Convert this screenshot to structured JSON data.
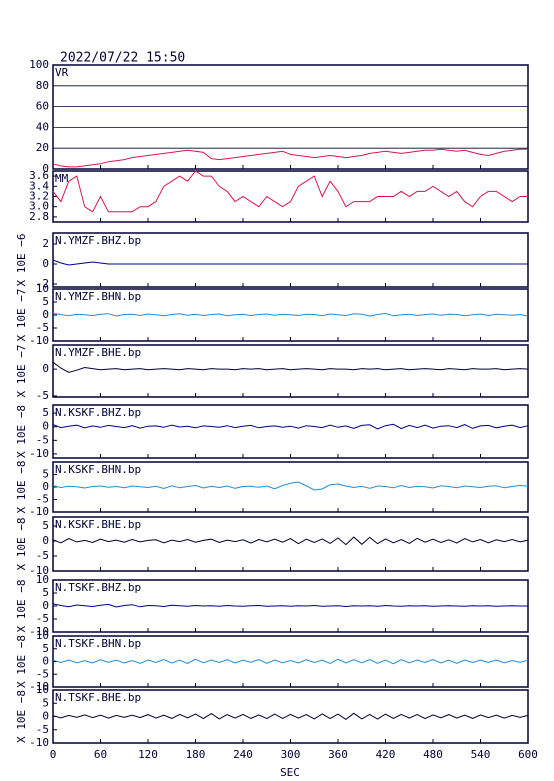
{
  "chart_data": {
    "type": "line",
    "date": "2022/07/22 15:50",
    "xlabel": "SEC",
    "x": [
      0,
      10,
      20,
      30,
      40,
      50,
      60,
      70,
      80,
      90,
      100,
      110,
      120,
      130,
      140,
      150,
      160,
      170,
      180,
      190,
      200,
      210,
      220,
      230,
      240,
      250,
      260,
      270,
      280,
      290,
      300,
      310,
      320,
      330,
      340,
      350,
      360,
      370,
      380,
      390,
      400,
      410,
      420,
      430,
      440,
      450,
      460,
      470,
      480,
      490,
      500,
      510,
      520,
      530,
      540,
      550,
      560,
      570,
      580,
      590,
      600
    ],
    "xlim": [
      0,
      600
    ],
    "xticks": [
      0,
      60,
      120,
      180,
      240,
      300,
      360,
      420,
      480,
      540,
      600
    ],
    "panels": [
      {
        "ylim": [
          0,
          100
        ],
        "yticks": [
          0,
          20,
          40,
          60,
          80,
          100
        ],
        "grid": true,
        "series": [
          {
            "name": "VR",
            "color": "#d8174b",
            "values": [
              5,
              3,
              2,
              2,
              3,
              4,
              5,
              7,
              8,
              9,
              11,
              12,
              13,
              14,
              15,
              16,
              17,
              18,
              17,
              16,
              10,
              9,
              10,
              11,
              12,
              13,
              14,
              15,
              16,
              17,
              14,
              13,
              12,
              11,
              12,
              13,
              12,
              11,
              12,
              13,
              15,
              16,
              17,
              16,
              15,
              16,
              17,
              18,
              18,
              19,
              18,
              17,
              18,
              16,
              14,
              13,
              15,
              17,
              18,
              19,
              19
            ]
          }
        ]
      },
      {
        "ylim": [
          2.7,
          3.7
        ],
        "yticks": [
          2.8,
          {
            "value": 3,
            "label": "3.0"
          },
          3.2,
          3.4,
          3.6
        ],
        "series": [
          {
            "name": "MM",
            "color": "#d8174b",
            "values": [
              3.3,
              3.1,
              3.5,
              3.6,
              3.0,
              2.9,
              3.2,
              2.9,
              2.9,
              2.9,
              2.9,
              3.0,
              3.0,
              3.1,
              3.4,
              3.5,
              3.6,
              3.5,
              3.7,
              3.6,
              3.6,
              3.4,
              3.3,
              3.1,
              3.2,
              3.1,
              3.0,
              3.2,
              3.1,
              3.0,
              3.1,
              3.4,
              3.5,
              3.6,
              3.2,
              3.5,
              3.3,
              3.0,
              3.1,
              3.1,
              3.1,
              3.2,
              3.2,
              3.2,
              3.3,
              3.2,
              3.3,
              3.3,
              3.4,
              3.3,
              3.2,
              3.3,
              3.1,
              3.0,
              3.2,
              3.3,
              3.3,
              3.2,
              3.1,
              3.2,
              3.2
            ]
          }
        ]
      },
      {
        "ylabel": "X 10E −6",
        "ylim": [
          -2.3,
          3.1
        ],
        "yticks": [
          -2,
          0,
          2
        ],
        "series": [
          {
            "name": "N.YMZF.BHZ.bp",
            "color": "#00008b",
            "values": [
              0.4,
              0.1,
              -0.1,
              0,
              0.1,
              0.2,
              0.1,
              0,
              0,
              0,
              0,
              0,
              0,
              0,
              0,
              0,
              0,
              0,
              0,
              0,
              0,
              0,
              0,
              0,
              0,
              0,
              0,
              0,
              0,
              0,
              0,
              0,
              0,
              0,
              0,
              0,
              0,
              0,
              0,
              0,
              0,
              0,
              0,
              0,
              0,
              0,
              0,
              0,
              0,
              0,
              0,
              0,
              0,
              0,
              0,
              0,
              0,
              0,
              0,
              0,
              0
            ]
          }
        ]
      },
      {
        "ylabel": "X 10E −7",
        "ylim": [
          -10,
          10
        ],
        "yticks": [
          -10,
          -5,
          0,
          5,
          10
        ],
        "series": [
          {
            "name": "N.YMZF.BHN.bp",
            "color": "#1f8fd8",
            "values": [
              0.6,
              0.2,
              -0.3,
              0.3,
              0.1,
              -0.2,
              0.3,
              0.5,
              -0.4,
              0.2,
              0.3,
              -0.2,
              0.4,
              0.1,
              -0.3,
              0.2,
              0.5,
              -0.1,
              0.3,
              -0.2,
              0.2,
              0.4,
              -0.3,
              0.1,
              0.3,
              -0.2,
              0.2,
              0.4,
              -0.1,
              0.3,
              0.1,
              -0.2,
              0.3,
              0.2,
              -0.3,
              0.4,
              0.1,
              -0.2,
              0.5,
              0.3,
              -0.4,
              0.2,
              0.6,
              -0.3,
              0.1,
              0.3,
              -0.2,
              0.2,
              0.4,
              -0.1,
              0.3,
              0.2,
              -0.3,
              0.1,
              0.4,
              -0.2,
              0.3,
              0.1,
              -0.1,
              0.2,
              -0.4
            ]
          }
        ]
      },
      {
        "ylabel": "X 10E −7",
        "ylim": [
          -5.2,
          4.5
        ],
        "yticks": [
          -5,
          0
        ],
        "series": [
          {
            "name": "N.YMZF.BHE.bp",
            "color": "#000033",
            "values": [
              1.3,
              0.2,
              -0.6,
              -0.2,
              0.3,
              0.1,
              -0.1,
              0,
              0.1,
              -0.1,
              0,
              0.1,
              -0.1,
              0,
              0.1,
              0,
              -0.1,
              0.1,
              0,
              -0.1,
              0.1,
              0,
              0,
              -0.1,
              0.1,
              0,
              0.1,
              -0.1,
              0,
              0.1,
              -0.1,
              0,
              0.1,
              0,
              -0.1,
              0.1,
              0,
              0,
              -0.1,
              0.1,
              0,
              0.1,
              -0.1,
              0,
              0.1,
              -0.1,
              0,
              0.1,
              0,
              -0.1,
              0.1,
              0,
              -0.1,
              0.1,
              0,
              0,
              0.1,
              -0.1,
              0,
              0.1,
              0
            ]
          }
        ]
      },
      {
        "ylabel": "X 10E −8",
        "ylim": [
          -11.5,
          8
        ],
        "yticks": [
          -10,
          -5,
          0,
          5
        ],
        "series": [
          {
            "name": "N.KSKF.BHZ.bp",
            "color": "#00008b",
            "values": [
              0.8,
              -0.3,
              0.2,
              0.6,
              -0.4,
              0.3,
              -0.2,
              0.5,
              0.1,
              -0.3,
              0.4,
              -0.5,
              0.2,
              0.3,
              -0.2,
              0.6,
              -0.1,
              0.2,
              -0.4,
              0.3,
              0.1,
              -0.2,
              0.4,
              -0.3,
              0.2,
              0.5,
              -0.4,
              0.1,
              0.3,
              -0.2,
              0.2,
              -0.5,
              0.4,
              0.1,
              -0.3,
              0.6,
              -0.2,
              0.3,
              -0.6,
              0.5,
              0.7,
              -0.8,
              0.4,
              0.9,
              -0.7,
              0.5,
              -0.3,
              0.6,
              -0.5,
              0.2,
              0.4,
              -0.3,
              0.8,
              -0.6,
              0.3,
              0.5,
              -0.4,
              0.2,
              0.6,
              -0.3,
              0.4
            ]
          }
        ]
      },
      {
        "ylabel": "X 10E −8",
        "ylim": [
          -10,
          10
        ],
        "yticks": [
          -10,
          -5,
          0,
          5
        ],
        "series": [
          {
            "name": "N.KSKF.BHN.bp",
            "color": "#1f8fd8",
            "values": [
              0.5,
              -0.2,
              0.3,
              0.1,
              -0.4,
              0.2,
              0.4,
              -0.1,
              0.2,
              -0.3,
              0.4,
              0.1,
              -0.2,
              0.3,
              -0.6,
              0.5,
              -0.3,
              0.2,
              0.6,
              -0.4,
              0.3,
              -0.2,
              0.4,
              -0.5,
              0.2,
              0.3,
              -0.1,
              0.4,
              -0.7,
              0.6,
              1.5,
              2.0,
              0.5,
              -1.2,
              -0.8,
              0.9,
              1.2,
              0.4,
              -0.2,
              0.3,
              -0.5,
              0.4,
              0.2,
              -0.3,
              0.6,
              -0.2,
              0.3,
              0.1,
              -0.4,
              0.5,
              0.2,
              -0.3,
              0.4,
              0.1,
              -0.2,
              0.3,
              0.5,
              -0.3,
              0.2,
              0.6,
              0.3
            ]
          }
        ]
      },
      {
        "ylabel": "X 10E −8",
        "ylim": [
          -10,
          8
        ],
        "yticks": [
          -10,
          -5,
          0,
          5
        ],
        "series": [
          {
            "name": "N.KSKF.BHE.bp",
            "color": "#000033",
            "values": [
              0.4,
              -0.6,
              0.8,
              -0.3,
              0.2,
              -0.5,
              0.6,
              -0.2,
              0.3,
              -0.4,
              0.5,
              -0.3,
              0.2,
              0.4,
              -0.6,
              0.3,
              -0.2,
              0.5,
              -0.4,
              0.2,
              0.6,
              -0.5,
              0.3,
              -0.2,
              0.4,
              -0.7,
              0.5,
              -0.3,
              0.6,
              -0.4,
              0.8,
              -0.9,
              0.6,
              -0.5,
              0.7,
              -0.8,
              1.0,
              -1.2,
              1.3,
              -1.1,
              1.2,
              -0.9,
              0.7,
              -0.6,
              0.5,
              -0.8,
              0.9,
              -0.4,
              0.6,
              -0.5,
              0.4,
              -0.7,
              0.8,
              -0.3,
              0.5,
              -0.6,
              0.4,
              -0.2,
              0.5,
              -0.3,
              0.3
            ]
          }
        ]
      },
      {
        "ylabel": "X 10E −8",
        "ylim": [
          -10,
          10
        ],
        "yticks": [
          -10,
          -5,
          0,
          5,
          10
        ],
        "series": [
          {
            "name": "N.TSKF.BHZ.bp",
            "color": "#00008b",
            "values": [
              0.8,
              0.2,
              -0.3,
              0.4,
              0.1,
              -0.2,
              0.3,
              0.6,
              -0.4,
              0.2,
              0.5,
              -0.3,
              0.2,
              0.1,
              -0.2,
              0.3,
              0.1,
              -0.1,
              0.2,
              0,
              0.1,
              -0.1,
              0.2,
              0,
              -0.1,
              0.1,
              0.2,
              -0.1,
              0,
              0.1,
              -0.1,
              0.1,
              0,
              0.2,
              -0.1,
              0,
              0.1,
              -0.2,
              0.1,
              0,
              0.1,
              -0.1,
              0.2,
              0,
              -0.1,
              0.1,
              0,
              0.1,
              -0.1,
              0,
              0.1,
              0,
              -0.1,
              0.1,
              0,
              0.1,
              -0.1,
              0,
              0.1,
              0,
              0
            ]
          }
        ]
      },
      {
        "ylabel": "X 10E −8",
        "ylim": [
          -10,
          10
        ],
        "yticks": [
          -10,
          -5,
          0,
          5,
          10
        ],
        "series": [
          {
            "name": "N.TSKF.BHN.bp",
            "color": "#1f8fd8",
            "values": [
              0.5,
              -0.4,
              0.6,
              -0.5,
              0.3,
              -0.6,
              0.7,
              -0.3,
              0.5,
              -0.6,
              0.4,
              -0.7,
              0.6,
              -0.4,
              0.8,
              -0.6,
              0.5,
              -0.8,
              0.9,
              -0.5,
              0.6,
              -0.4,
              0.7,
              -0.6,
              0.5,
              -0.3,
              0.8,
              -0.7,
              0.6,
              -0.5,
              0.4,
              -0.6,
              0.7,
              -0.4,
              0.5,
              -0.8,
              0.9,
              -0.6,
              0.7,
              -0.5,
              0.8,
              -0.7,
              0.6,
              -0.9,
              0.7,
              -0.5,
              0.6,
              -0.4,
              0.8,
              -0.6,
              0.5,
              -0.7,
              0.6,
              -0.4,
              0.5,
              -0.3,
              0.6,
              -0.5,
              0.4,
              -0.3,
              0.5
            ]
          }
        ]
      },
      {
        "ylabel": "X 10E −8",
        "ylim": [
          -10,
          10
        ],
        "yticks": [
          -10,
          -5,
          0,
          5,
          10
        ],
        "series": [
          {
            "name": "N.TSKF.BHE.bp",
            "color": "#000033",
            "values": [
              0.3,
              -0.5,
              0.4,
              -0.3,
              0.6,
              -0.4,
              0.5,
              -0.6,
              0.4,
              -0.3,
              0.5,
              -0.4,
              0.7,
              -0.6,
              0.5,
              -0.7,
              0.8,
              -0.5,
              0.9,
              -0.8,
              1.1,
              -0.9,
              0.7,
              -0.6,
              0.8,
              -0.7,
              0.6,
              -0.8,
              0.9,
              -0.7,
              0.8,
              -0.6,
              0.7,
              -0.9,
              1.0,
              -0.8,
              0.9,
              -1.1,
              1.2,
              -0.9,
              0.8,
              -1.0,
              0.9,
              -0.7,
              0.8,
              -0.6,
              0.7,
              -0.8,
              0.6,
              -0.5,
              0.7,
              -0.6,
              0.5,
              -0.7,
              0.6,
              -0.4,
              0.5,
              -0.6,
              0.4,
              -0.3,
              0.4
            ]
          }
        ]
      }
    ]
  }
}
